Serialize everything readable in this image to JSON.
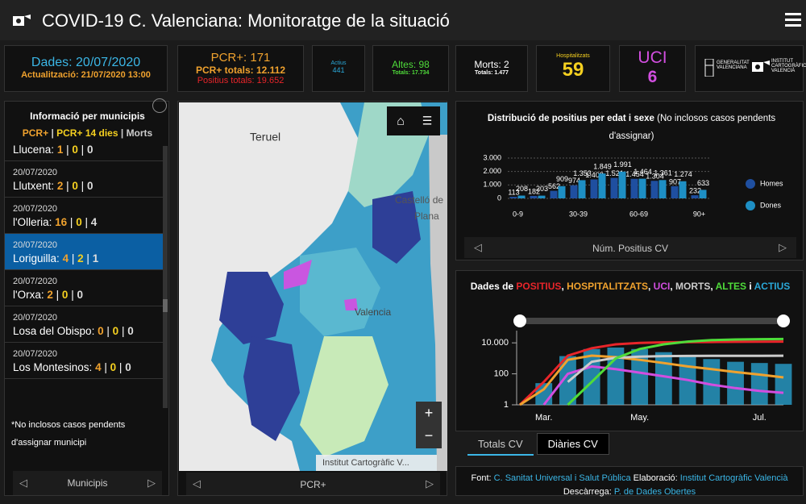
{
  "header": {
    "title": "COVID-19 C. Valenciana: Monitoratge de la situació"
  },
  "kpis": {
    "dades": {
      "date": "Dades: 20/07/2020",
      "update": "Actualització: 21/07/2020 13:00"
    },
    "pcr": {
      "main": "PCR+: 171",
      "total": "PCR+ totals: 12.112",
      "positius": "Positius totals: 19.652"
    },
    "actius": {
      "label": "Actius",
      "value": 441
    },
    "altes": {
      "main": "Altes: 98",
      "total": "Totals: 17.734"
    },
    "morts": {
      "main": "Morts: 2",
      "total": "Totals: 1.477"
    },
    "hospitalitzats": {
      "label": "Hospitalitzats",
      "value": 59
    },
    "uci": {
      "label": "UCI",
      "value": 6
    },
    "logos": [
      "GENERALITAT VALENCIANA",
      "INSTITUT CARTOGRÀFIC VALENCIÀ"
    ]
  },
  "municipis": {
    "title": "Informació per municipis",
    "legend": [
      "PCR+",
      "|",
      "PCR+ 14 dies",
      "|",
      "Morts"
    ],
    "sep": "|",
    "items": [
      {
        "date": null,
        "name": "Llucena:",
        "pcr": 1,
        "pcr14": 0,
        "morts": 0
      },
      {
        "date": "20/07/2020",
        "name": "Llutxent:",
        "pcr": 2,
        "pcr14": 0,
        "morts": 0
      },
      {
        "date": "20/07/2020",
        "name": "l'Olleria:",
        "pcr": 16,
        "pcr14": 0,
        "morts": 4
      },
      {
        "date": "20/07/2020",
        "name": "Loriguilla:",
        "pcr": 4,
        "pcr14": 2,
        "morts": 1,
        "selected": true
      },
      {
        "date": "20/07/2020",
        "name": "l'Orxa:",
        "pcr": 2,
        "pcr14": 0,
        "morts": 0
      },
      {
        "date": "20/07/2020",
        "name": "Losa del Obispo:",
        "pcr": 0,
        "pcr14": 0,
        "morts": 0
      },
      {
        "date": "20/07/2020",
        "name": "Los Montesinos:",
        "pcr": 4,
        "pcr14": 0,
        "morts": 0
      }
    ],
    "note": "*No inclosos casos pendents d'assignar municipi",
    "footer": "Municipis"
  },
  "map": {
    "labels": [
      "Teruel",
      "Castelló de",
      "Plana",
      "Valencia"
    ],
    "credit": "Institut Cartogràfic V...",
    "footer": "PCR+"
  },
  "chart_data": [
    {
      "type": "bar",
      "title": "Distribució de positius per edat i sexe",
      "subtitle": "(No inclosos casos pendents d'assignar)",
      "categories": [
        "0-9",
        null,
        null,
        "30-39",
        null,
        null,
        "60-69",
        null,
        null,
        "90+"
      ],
      "series": [
        {
          "name": "Homes",
          "color": "#1f4fa0",
          "values": [
            113,
            182,
            562,
            974,
            1408,
            1521,
            1454,
            1304,
            907,
            232
          ],
          "value_labels": [
            "113",
            "182",
            "562",
            "974",
            "1.408",
            "1.521",
            "1.454",
            "1.304",
            "907",
            "232"
          ]
        },
        {
          "name": "Dones",
          "color": "#1e8fc4",
          "values": [
            208,
            203,
            909,
            1353,
            1849,
            1991,
            1464,
            1361,
            1274,
            633
          ],
          "value_labels": [
            "208",
            "203",
            "909",
            "1.353",
            "1.849",
            "1.991",
            "1.464",
            "1.361",
            "1.274",
            "633"
          ]
        }
      ],
      "ylim": [
        0,
        3000
      ],
      "yticks": [
        0,
        {
          "value": 1000,
          "label": "1.000"
        },
        {
          "value": 2000,
          "label": "2.000"
        },
        {
          "value": 3000,
          "label": "3.000"
        }
      ],
      "footer": "Núm. Positius CV"
    },
    {
      "type": "line",
      "title_segments": [
        {
          "text": "Dades de ",
          "color": "#ffffff"
        },
        {
          "text": "POSITIUS",
          "color": "#e8252a"
        },
        {
          "text": ", ",
          "color": "#ffffff"
        },
        {
          "text": "HOSPITALITZATS",
          "color": "#f0a22e"
        },
        {
          "text": ", ",
          "color": "#ffffff"
        },
        {
          "text": "UCI",
          "color": "#d24ee0"
        },
        {
          "text": ", ",
          "color": "#ffffff"
        },
        {
          "text": "MORTS",
          "color": "#cccccc"
        },
        {
          "text": ", ",
          "color": "#ffffff"
        },
        {
          "text": "ALTES",
          "color": "#4fdc3a"
        },
        {
          "text": " i ",
          "color": "#ffffff"
        },
        {
          "text": "ACTIUS",
          "color": "#2aa8d8"
        }
      ],
      "categories": [
        null,
        "Mar.",
        null,
        null,
        null,
        "May.",
        null,
        null,
        null,
        null,
        "Jul.",
        null
      ],
      "log_scale": true,
      "ylim": [
        1,
        30000
      ],
      "yticks": [
        1,
        100,
        {
          "value": 10000,
          "label": "10.000"
        }
      ],
      "series": [
        {
          "color": "#2aa8d8",
          "style": "bar",
          "values": [
            1,
            25,
            1400,
            4000,
            5000,
            4000,
            2500,
            1500,
            900,
            600,
            500,
            441
          ]
        },
        {
          "color": "#e8252a",
          "style": "line",
          "values": [
            1,
            30,
            1500,
            4500,
            8000,
            10000,
            10800,
            11200,
            11400,
            11600,
            11900,
            12112
          ]
        },
        {
          "color": "#f0a22e",
          "style": "line",
          "values": [
            1,
            10,
            800,
            1500,
            1200,
            800,
            500,
            300,
            200,
            130,
            90,
            59
          ]
        },
        {
          "color": "#d24ee0",
          "style": "line",
          "values": [
            null,
            1,
            100,
            300,
            200,
            120,
            70,
            40,
            20,
            12,
            8,
            6
          ]
        },
        {
          "color": "#cccccc",
          "style": "line",
          "values": [
            null,
            null,
            30,
            600,
            1100,
            1300,
            1400,
            1430,
            1450,
            1460,
            1470,
            1477
          ]
        },
        {
          "color": "#4fdc3a",
          "style": "line",
          "values": [
            null,
            null,
            1,
            30,
            1000,
            4000,
            8000,
            12000,
            15000,
            16500,
            17200,
            17734
          ]
        }
      ],
      "tabs": [
        "Totals CV",
        "Diàries CV"
      ]
    }
  ],
  "source": {
    "parts": [
      "Font:",
      "C. Sanitat Universal i Salut Pública",
      "Elaboració:",
      "Institut Cartogràfic Valencià",
      "Descàrrega:",
      "P. de Dades Obertes"
    ]
  }
}
